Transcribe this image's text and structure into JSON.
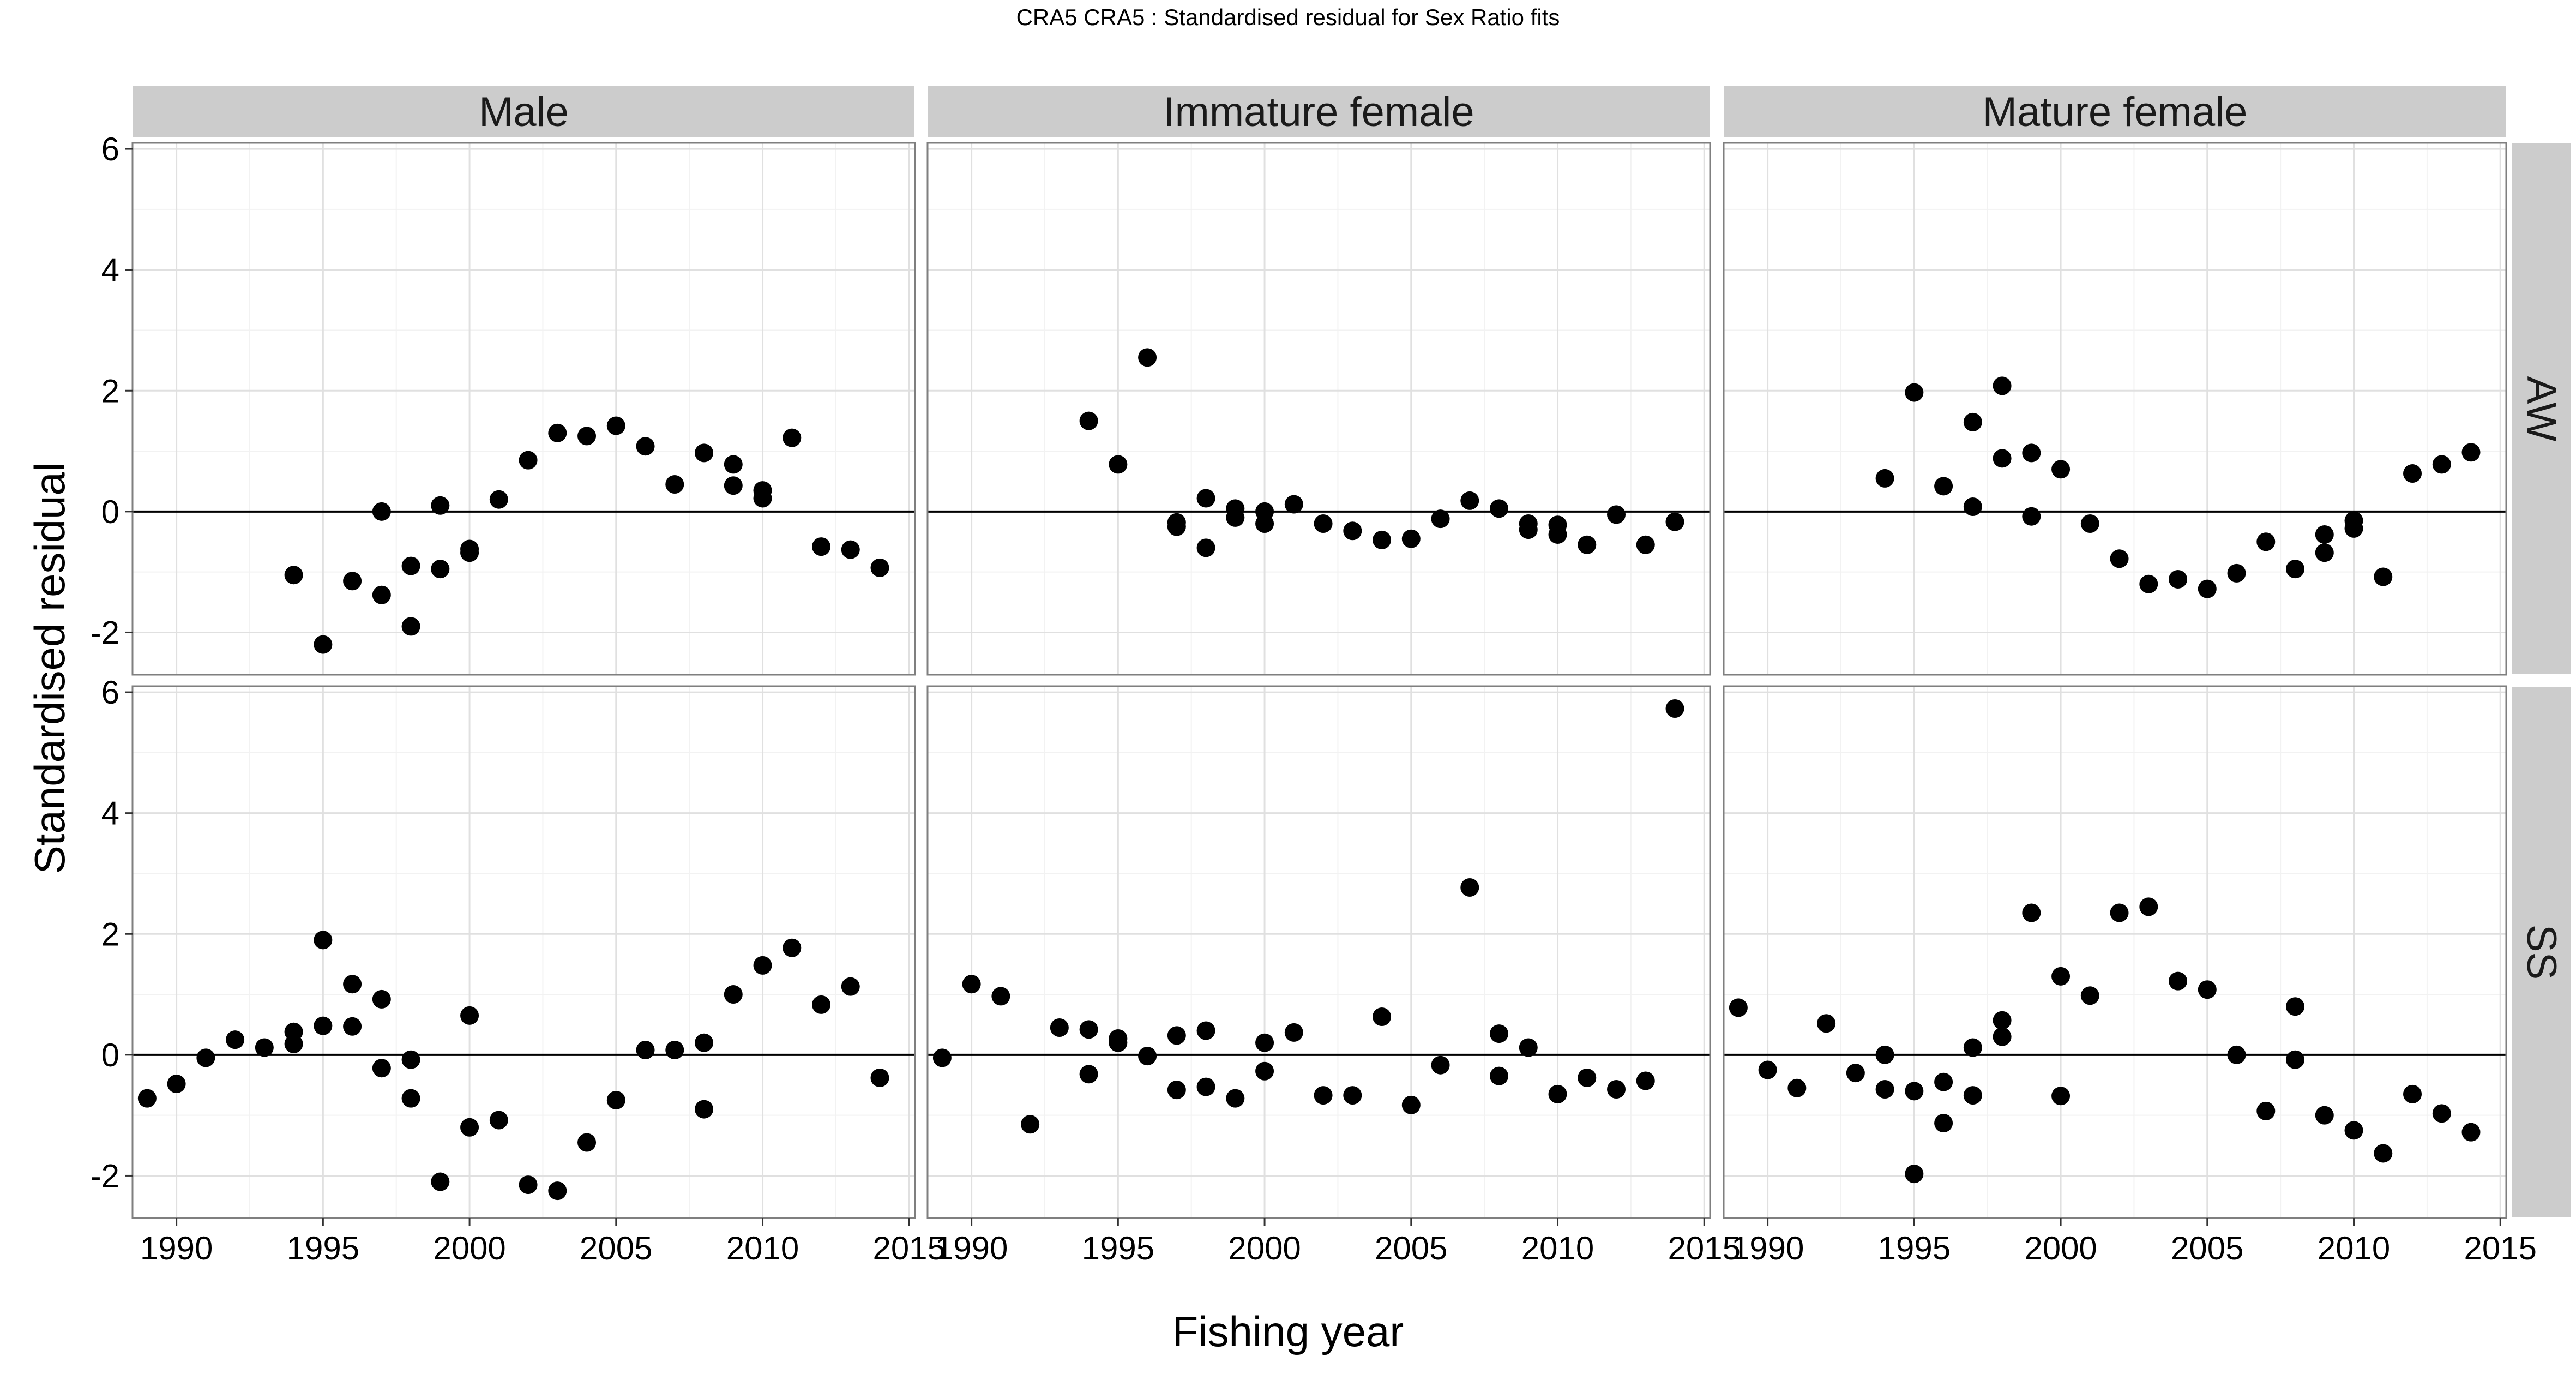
{
  "title": "CRA5   CRA5 : Standardised residual for Sex Ratio fits",
  "chart_data": {
    "type": "scatter",
    "facets": {
      "columns": [
        "Male",
        "Immature female",
        "Mature female"
      ],
      "rows": [
        "AW",
        "SS"
      ]
    },
    "xlabel": "Fishing year",
    "ylabel": "Standardised residual",
    "xlim": [
      1988.5,
      2015.2
    ],
    "ylim": [
      -2.7,
      6.1
    ],
    "x_ticks": [
      1990,
      1995,
      2000,
      2005,
      2010,
      2015
    ],
    "x_tick_labels": [
      "1990",
      "1995",
      "2000",
      "2005",
      "2010",
      "2015"
    ],
    "y_ticks": [
      -2,
      0,
      2,
      4,
      6
    ],
    "y_tick_labels": [
      "-2",
      "0",
      "2",
      "4",
      "6"
    ],
    "reference_line_y": 0,
    "grid": true,
    "panels": [
      {
        "row": "AW",
        "column": "Male",
        "points": [
          [
            1994,
            -1.05
          ],
          [
            1995,
            -2.2
          ],
          [
            1996,
            -1.15
          ],
          [
            1997,
            -1.38
          ],
          [
            1997,
            0.0
          ],
          [
            1998,
            -0.9
          ],
          [
            1998,
            -1.9
          ],
          [
            1999,
            0.1
          ],
          [
            1999,
            -0.95
          ],
          [
            2000,
            -0.62
          ],
          [
            2000,
            -0.68
          ],
          [
            2001,
            0.2
          ],
          [
            2002,
            0.85
          ],
          [
            2003,
            1.3
          ],
          [
            2004,
            1.25
          ],
          [
            2005,
            1.42
          ],
          [
            2006,
            1.08
          ],
          [
            2007,
            0.45
          ],
          [
            2008,
            0.97
          ],
          [
            2009,
            0.78
          ],
          [
            2009,
            0.43
          ],
          [
            2010,
            0.35
          ],
          [
            2010,
            0.22
          ],
          [
            2011,
            1.22
          ],
          [
            2012,
            -0.58
          ],
          [
            2013,
            -0.63
          ],
          [
            2014,
            -0.93
          ]
        ]
      },
      {
        "row": "AW",
        "column": "Immature female",
        "points": [
          [
            1994,
            1.5
          ],
          [
            1995,
            0.78
          ],
          [
            1996,
            2.55
          ],
          [
            1997,
            -0.18
          ],
          [
            1997,
            -0.25
          ],
          [
            1998,
            0.22
          ],
          [
            1998,
            -0.6
          ],
          [
            1999,
            0.05
          ],
          [
            1999,
            -0.1
          ],
          [
            2000,
            0.0
          ],
          [
            2000,
            -0.2
          ],
          [
            2001,
            0.12
          ],
          [
            2002,
            -0.2
          ],
          [
            2003,
            -0.32
          ],
          [
            2004,
            -0.47
          ],
          [
            2005,
            -0.45
          ],
          [
            2006,
            -0.12
          ],
          [
            2007,
            0.18
          ],
          [
            2008,
            0.05
          ],
          [
            2009,
            -0.2
          ],
          [
            2009,
            -0.3
          ],
          [
            2010,
            -0.22
          ],
          [
            2010,
            -0.38
          ],
          [
            2011,
            -0.55
          ],
          [
            2012,
            -0.05
          ],
          [
            2013,
            -0.55
          ],
          [
            2014,
            -0.17
          ]
        ]
      },
      {
        "row": "AW",
        "column": "Mature female",
        "points": [
          [
            1994,
            0.55
          ],
          [
            1995,
            1.97
          ],
          [
            1996,
            0.42
          ],
          [
            1997,
            1.48
          ],
          [
            1997,
            0.08
          ],
          [
            1998,
            2.08
          ],
          [
            1998,
            0.88
          ],
          [
            1999,
            0.97
          ],
          [
            1999,
            -0.08
          ],
          [
            2000,
            0.7
          ],
          [
            2001,
            -0.2
          ],
          [
            2002,
            -0.78
          ],
          [
            2003,
            -1.2
          ],
          [
            2004,
            -1.12
          ],
          [
            2005,
            -1.28
          ],
          [
            2006,
            -1.02
          ],
          [
            2007,
            -0.5
          ],
          [
            2008,
            -0.95
          ],
          [
            2009,
            -0.68
          ],
          [
            2009,
            -0.38
          ],
          [
            2010,
            -0.15
          ],
          [
            2010,
            -0.28
          ],
          [
            2011,
            -1.08
          ],
          [
            2012,
            0.63
          ],
          [
            2013,
            0.78
          ],
          [
            2014,
            0.98
          ]
        ]
      },
      {
        "row": "SS",
        "column": "Male",
        "points": [
          [
            1989,
            -0.72
          ],
          [
            1990,
            -0.48
          ],
          [
            1991,
            -0.05
          ],
          [
            1992,
            0.25
          ],
          [
            1993,
            0.12
          ],
          [
            1994,
            0.38
          ],
          [
            1994,
            0.18
          ],
          [
            1995,
            1.9
          ],
          [
            1995,
            0.48
          ],
          [
            1996,
            1.17
          ],
          [
            1996,
            0.47
          ],
          [
            1997,
            0.92
          ],
          [
            1997,
            -0.22
          ],
          [
            1998,
            -0.08
          ],
          [
            1998,
            -0.72
          ],
          [
            1999,
            -2.1
          ],
          [
            2000,
            0.65
          ],
          [
            2000,
            -1.2
          ],
          [
            2001,
            -1.08
          ],
          [
            2002,
            -2.15
          ],
          [
            2003,
            -2.25
          ],
          [
            2004,
            -1.45
          ],
          [
            2005,
            -0.75
          ],
          [
            2006,
            0.08
          ],
          [
            2007,
            0.08
          ],
          [
            2008,
            0.2
          ],
          [
            2008,
            -0.9
          ],
          [
            2009,
            1.0
          ],
          [
            2010,
            1.48
          ],
          [
            2011,
            1.77
          ],
          [
            2012,
            0.83
          ],
          [
            2013,
            1.13
          ],
          [
            2014,
            -0.38
          ]
        ]
      },
      {
        "row": "SS",
        "column": "Immature female",
        "points": [
          [
            1989,
            -0.05
          ],
          [
            1990,
            1.17
          ],
          [
            1991,
            0.97
          ],
          [
            1992,
            -1.15
          ],
          [
            1993,
            0.45
          ],
          [
            1994,
            0.42
          ],
          [
            1994,
            -0.32
          ],
          [
            1995,
            0.27
          ],
          [
            1995,
            0.2
          ],
          [
            1996,
            -0.02
          ],
          [
            1997,
            0.32
          ],
          [
            1997,
            -0.58
          ],
          [
            1998,
            0.4
          ],
          [
            1998,
            -0.53
          ],
          [
            1999,
            -0.72
          ],
          [
            2000,
            0.2
          ],
          [
            2000,
            -0.27
          ],
          [
            2001,
            0.37
          ],
          [
            2002,
            -0.67
          ],
          [
            2003,
            -0.67
          ],
          [
            2004,
            0.63
          ],
          [
            2005,
            -0.83
          ],
          [
            2006,
            -0.17
          ],
          [
            2007,
            2.77
          ],
          [
            2008,
            0.35
          ],
          [
            2008,
            -0.35
          ],
          [
            2009,
            0.12
          ],
          [
            2010,
            -0.65
          ],
          [
            2011,
            -0.38
          ],
          [
            2012,
            -0.57
          ],
          [
            2013,
            -0.43
          ],
          [
            2014,
            5.73
          ]
        ]
      },
      {
        "row": "SS",
        "column": "Mature female",
        "points": [
          [
            1989,
            0.78
          ],
          [
            1990,
            -0.25
          ],
          [
            1991,
            -0.55
          ],
          [
            1992,
            0.52
          ],
          [
            1993,
            -0.3
          ],
          [
            1994,
            0.0
          ],
          [
            1994,
            -0.57
          ],
          [
            1995,
            -0.6
          ],
          [
            1995,
            -1.97
          ],
          [
            1996,
            -0.45
          ],
          [
            1996,
            -1.13
          ],
          [
            1997,
            0.12
          ],
          [
            1997,
            -0.67
          ],
          [
            1998,
            0.57
          ],
          [
            1998,
            0.3
          ],
          [
            1999,
            2.35
          ],
          [
            2000,
            1.3
          ],
          [
            2000,
            -0.68
          ],
          [
            2001,
            0.98
          ],
          [
            2002,
            2.35
          ],
          [
            2003,
            2.45
          ],
          [
            2004,
            1.22
          ],
          [
            2005,
            1.08
          ],
          [
            2006,
            0.0
          ],
          [
            2007,
            -0.93
          ],
          [
            2008,
            0.8
          ],
          [
            2008,
            -0.08
          ],
          [
            2009,
            -1.0
          ],
          [
            2010,
            -1.25
          ],
          [
            2011,
            -1.63
          ],
          [
            2012,
            -0.65
          ],
          [
            2013,
            -0.97
          ],
          [
            2014,
            -1.28
          ]
        ]
      }
    ]
  }
}
